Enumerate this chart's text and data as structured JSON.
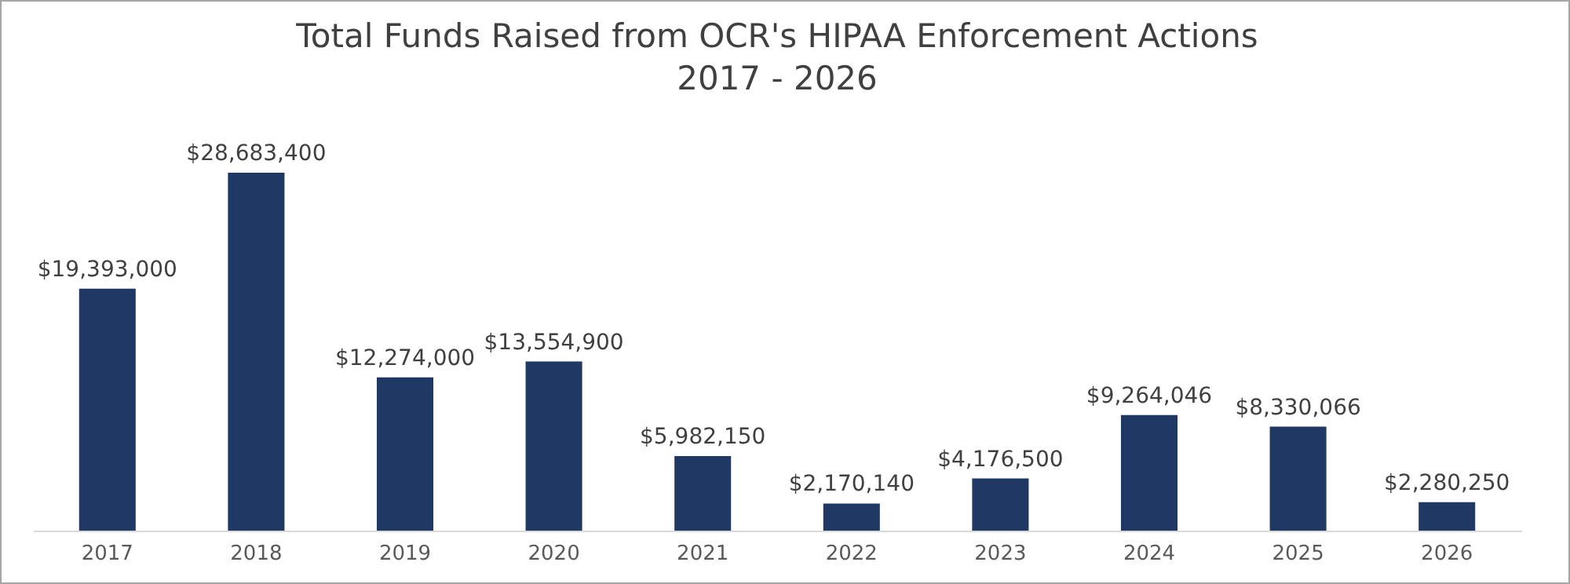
{
  "chart_data": {
    "type": "bar",
    "title": "Total Funds Raised from OCR's HIPAA Enforcement Actions",
    "subtitle": "2017 - 2026",
    "categories": [
      "2017",
      "2018",
      "2019",
      "2020",
      "2021",
      "2022",
      "2023",
      "2024",
      "2025",
      "2026"
    ],
    "values": [
      19393000,
      28683400,
      12274000,
      13554900,
      5982150,
      2170140,
      4176500,
      9264046,
      8330066,
      2280250
    ],
    "value_labels": [
      "$19,393,000",
      "$28,683,400",
      "$12,274,000",
      "$13,554,900",
      "$5,982,150",
      "$2,170,140",
      "$4,176,500",
      "$9,264,046",
      "$8,330,066",
      "$2,280,250"
    ],
    "color": "#1f3864",
    "tick_labels": "x"
  }
}
